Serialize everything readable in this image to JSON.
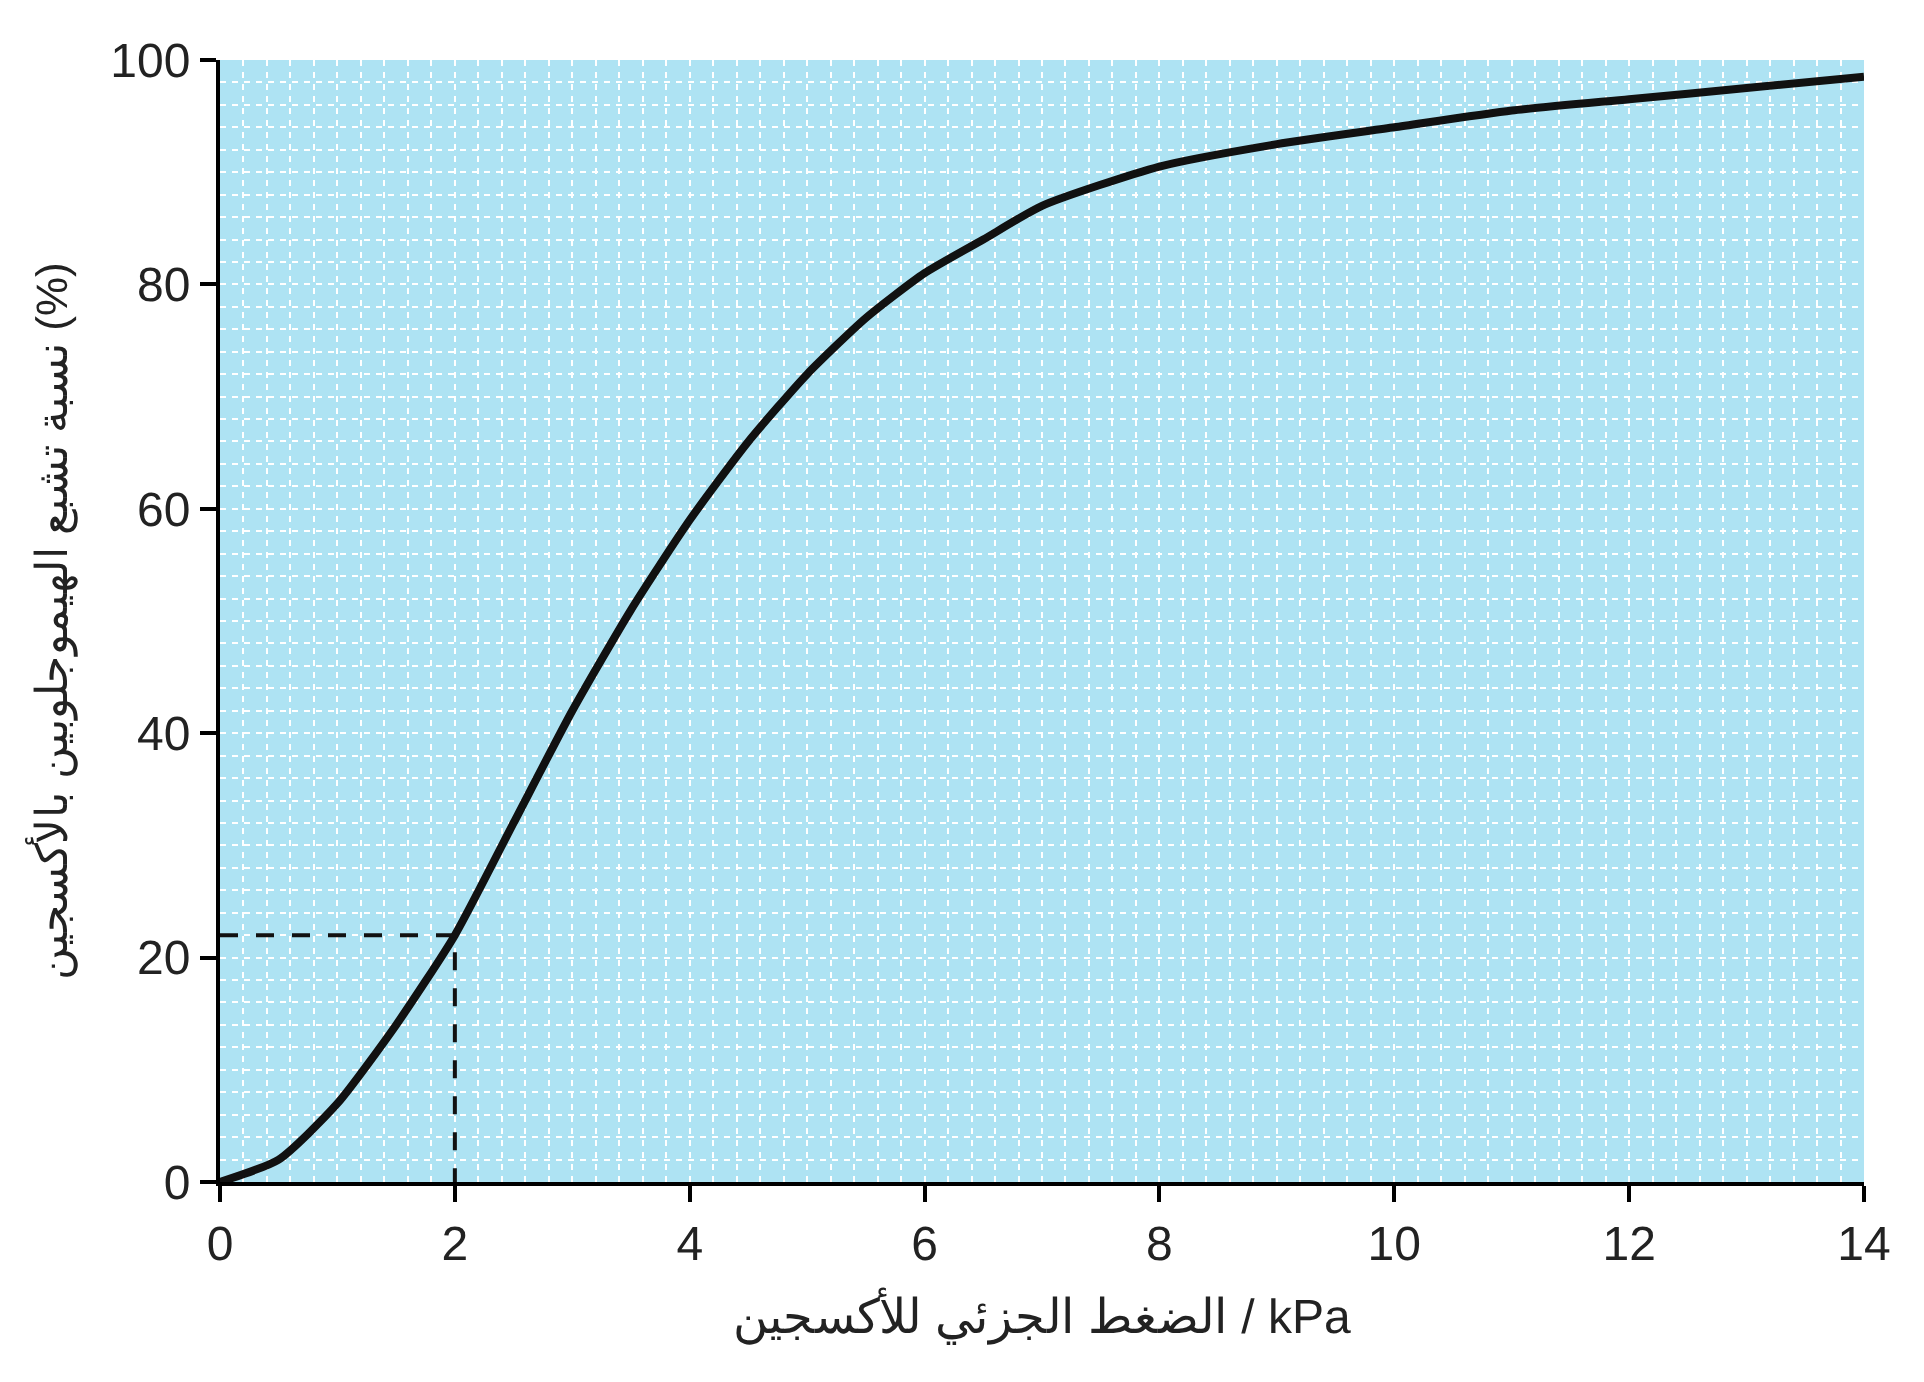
{
  "chart_data": {
    "type": "line",
    "xlabel": "الضغط الجزئي للأكسجين / kPa",
    "ylabel": "نسبة تشبع الهيموجلوبين بالأكسجين (%)",
    "xlim": [
      0,
      14
    ],
    "ylim": [
      0,
      100
    ],
    "xticks": [
      0,
      2,
      4,
      6,
      8,
      10,
      12,
      14
    ],
    "yticks": [
      0,
      20,
      40,
      60,
      80,
      100
    ],
    "grid": true,
    "marker": "none",
    "series": [
      {
        "color": "#111111",
        "line_style": "solid",
        "x": [
          0,
          0.5,
          1,
          1.5,
          2,
          2.5,
          3,
          3.5,
          4,
          4.5,
          5,
          5.5,
          6,
          6.5,
          7,
          8,
          9,
          10,
          11,
          12,
          13,
          14
        ],
        "values": [
          0,
          2,
          7,
          14,
          22,
          32,
          42,
          51,
          59,
          66,
          72,
          77,
          81,
          84,
          87,
          90.5,
          92.5,
          94,
          95.5,
          96.5,
          97.5,
          98.5
        ]
      },
      {
        "color": "#111111",
        "line_style": "dashed",
        "x": [
          0,
          2,
          2
        ],
        "values": [
          22,
          22,
          0
        ]
      }
    ]
  }
}
